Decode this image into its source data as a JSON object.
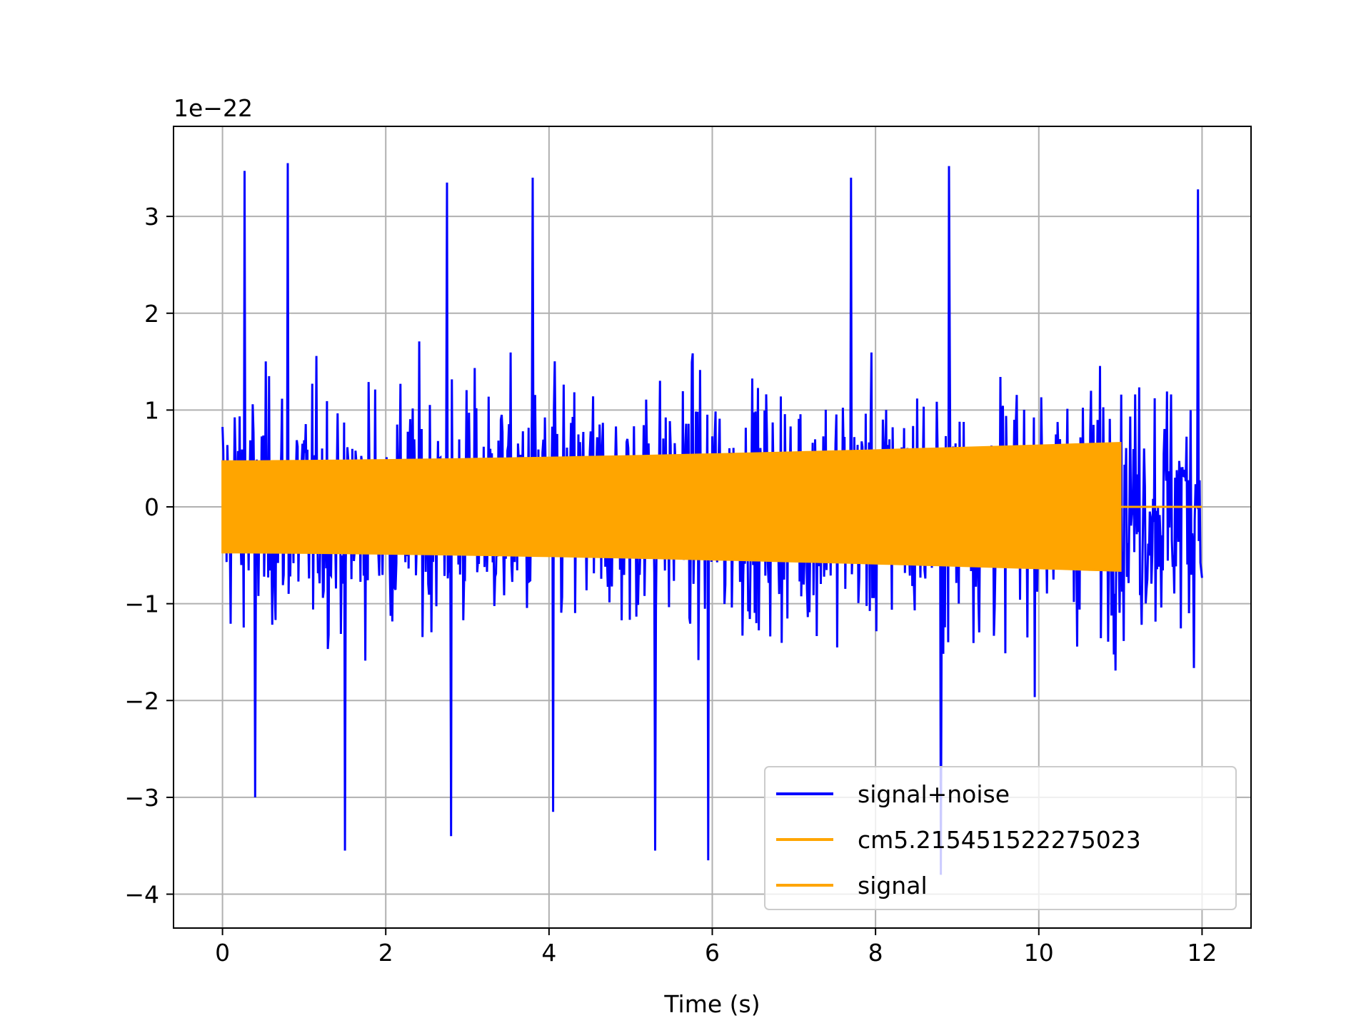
{
  "chart_data": {
    "type": "line",
    "title": "",
    "xlabel": "Time (s)",
    "ylabel": "",
    "y_offset_text": "1e−22",
    "y_scale_factor": 1e-22,
    "xlim": [
      -0.6,
      12.6
    ],
    "ylim": [
      -4.35,
      3.93
    ],
    "grid": true,
    "legend_position": "lower-right",
    "x_ticks": [
      0,
      2,
      4,
      6,
      8,
      10,
      12
    ],
    "x_tick_labels": [
      "0",
      "2",
      "4",
      "6",
      "8",
      "10",
      "12"
    ],
    "y_ticks": [
      3,
      2,
      1,
      0,
      -1,
      -2,
      -3,
      -4
    ],
    "y_tick_labels": [
      "3",
      "2",
      "1",
      "0",
      "−1",
      "−2",
      "−3",
      "−4"
    ],
    "series": [
      {
        "name": "signal+noise",
        "color": "#0000ff",
        "x_range": [
          0,
          12
        ],
        "typical_band": [
          -1.7,
          1.7
        ],
        "peak_points": [
          {
            "x": 0.27,
            "y": 3.47
          },
          {
            "x": 0.8,
            "y": 3.55
          },
          {
            "x": 2.75,
            "y": 3.35
          },
          {
            "x": 3.8,
            "y": 3.4
          },
          {
            "x": 7.7,
            "y": 3.4
          },
          {
            "x": 8.9,
            "y": 3.52
          },
          {
            "x": 11.95,
            "y": 3.28
          },
          {
            "x": 1.5,
            "y": -3.55
          },
          {
            "x": 2.8,
            "y": -3.4
          },
          {
            "x": 5.3,
            "y": -3.55
          },
          {
            "x": 5.95,
            "y": -3.65
          },
          {
            "x": 0.4,
            "y": -3.0
          },
          {
            "x": 4.05,
            "y": -3.15
          },
          {
            "x": 8.8,
            "y": -3.8
          }
        ]
      },
      {
        "name": "cm5.215451522275023",
        "color": "#ffa500",
        "x_range": [
          0,
          11
        ],
        "amplitude_start": 0.47,
        "amplitude_end": 0.66,
        "after_end_value": 0
      },
      {
        "name": "signal",
        "color": "#ffa500",
        "x_range": [
          0,
          12
        ],
        "note_value": 0
      }
    ]
  }
}
